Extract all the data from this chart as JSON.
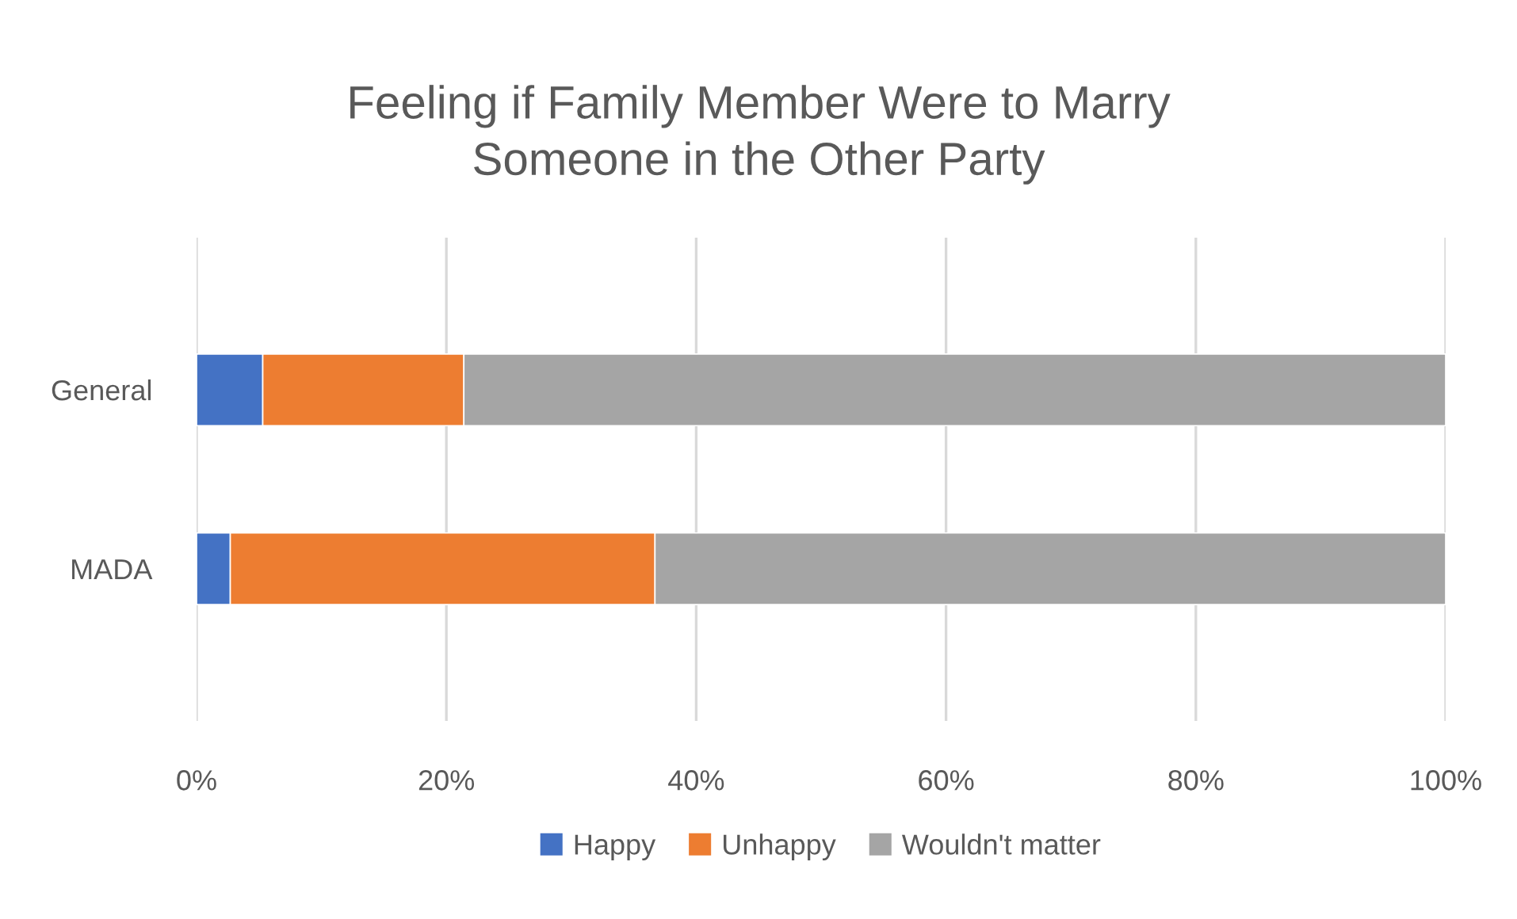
{
  "chart_data": {
    "type": "bar",
    "orientation": "horizontal",
    "stacked": true,
    "title": "Feeling if Family Member Were to Marry\nSomeone in the Other Party",
    "categories": [
      "General",
      "MADA"
    ],
    "series": [
      {
        "name": "Happy",
        "color": "#4472c4",
        "values": [
          5.3,
          2.7
        ]
      },
      {
        "name": "Unhappy",
        "color": "#ed7d31",
        "values": [
          16.1,
          34.0
        ]
      },
      {
        "name": "Wouldn't matter",
        "color": "#a5a5a5",
        "values": [
          78.6,
          63.3
        ]
      }
    ],
    "xlim": [
      0,
      100
    ],
    "xticks": [
      {
        "value": 0,
        "label": "0%"
      },
      {
        "value": 20,
        "label": "20%"
      },
      {
        "value": 40,
        "label": "40%"
      },
      {
        "value": 60,
        "label": "60%"
      },
      {
        "value": 80,
        "label": "80%"
      },
      {
        "value": 100,
        "label": "100%"
      }
    ],
    "grid": "x",
    "legend": "bottom"
  }
}
